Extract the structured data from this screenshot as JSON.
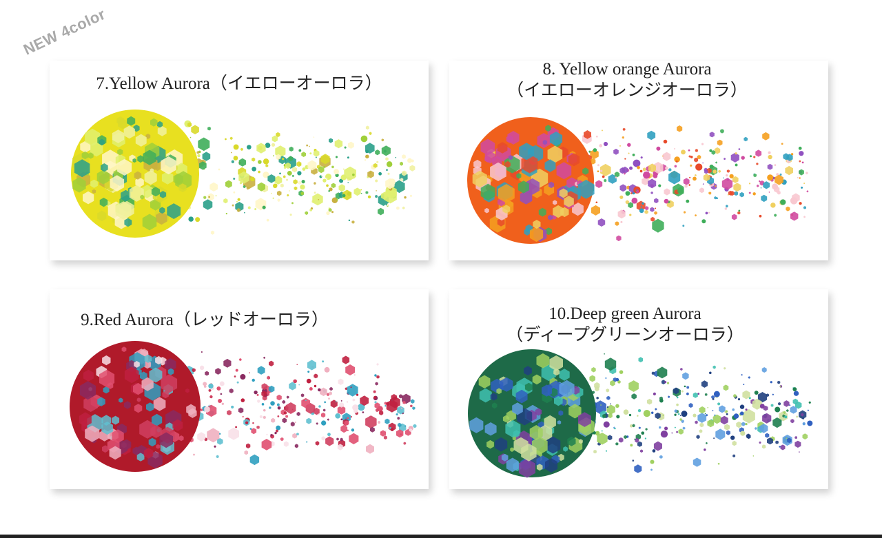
{
  "badge": "NEW 4color",
  "cards": [
    {
      "title": [
        "7.Yellow Aurora（イエローオーロラ）"
      ]
    },
    {
      "title": [
        "8. Yellow orange Aurora",
        "（イエローオレンジオーロラ）"
      ]
    },
    {
      "title": [
        "9.Red Aurora（レッドオーロラ）"
      ]
    },
    {
      "title": [
        "10.Deep green Aurora",
        "（ディープグリーンオーロラ）"
      ]
    }
  ]
}
